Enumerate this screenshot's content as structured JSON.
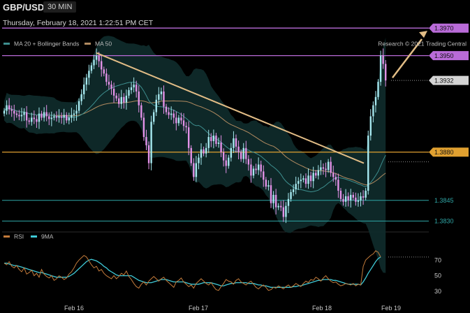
{
  "header": {
    "symbol": "GBP/USD",
    "timeframe": "30 MIN",
    "datetime": "Thursday, February 18, 2021 1:22:51 PM CET",
    "copyright": "Research © 2021 Trading Central"
  },
  "colors": {
    "background": "#000000",
    "up_candle": "#a6e8ef",
    "down_candle": "#e392e8",
    "bollinger_fill": "#0f2a2a",
    "ma20": "#3e8f8f",
    "ma50": "#b08a60",
    "trendline": "#e2bd86",
    "resistance": "#b96bd8",
    "support": "#e0a030",
    "cyan_level": "#2fa6a6",
    "current_price": "#cfcfcf",
    "rsi": "#c27a3a",
    "rsi_ma": "#3fc9d6"
  },
  "chart_data": [
    {
      "type": "candlestick",
      "legend": [
        {
          "label": "MA 20 + Bollinger Bands",
          "color": "#3e8f8f"
        },
        {
          "label": "MA 50",
          "color": "#b08a60"
        }
      ],
      "x_ticks": [
        "Feb 16",
        "Feb 17",
        "Feb 18",
        "Feb 19"
      ],
      "ylim": [
        1.3815,
        1.3985
      ],
      "levels": [
        {
          "value": 1.397,
          "label": "1.3970",
          "kind": "resistance"
        },
        {
          "value": 1.395,
          "label": "1.3950",
          "kind": "resistance"
        },
        {
          "value": 1.3932,
          "label": "1.3932",
          "kind": "current"
        },
        {
          "value": 1.388,
          "label": "1.3880",
          "kind": "support"
        },
        {
          "value": 1.3845,
          "label": "1.3845",
          "kind": "support-minor"
        },
        {
          "value": 1.383,
          "label": "1.3830",
          "kind": "support-minor"
        }
      ],
      "close": [
        1.391,
        1.3914,
        1.3911,
        1.391,
        1.3908,
        1.3907,
        1.3906,
        1.3907,
        1.3909,
        1.3903,
        1.3902,
        1.3905,
        1.3904,
        1.3902,
        1.3908,
        1.3905,
        1.3909,
        1.3906,
        1.3904,
        1.3905,
        1.3906,
        1.3905,
        1.3906,
        1.3905,
        1.3907,
        1.3903,
        1.3905,
        1.3907,
        1.3908,
        1.391,
        1.3917,
        1.3922,
        1.3929,
        1.3934,
        1.3939,
        1.3943,
        1.3947,
        1.395,
        1.3946,
        1.394,
        1.3937,
        1.3931,
        1.3929,
        1.3926,
        1.3921,
        1.3919,
        1.3915,
        1.392,
        1.3916,
        1.3921,
        1.3925,
        1.3927,
        1.3929,
        1.3924,
        1.3914,
        1.3905,
        1.3891,
        1.3885,
        1.3872,
        1.3902,
        1.3909,
        1.3918,
        1.3922,
        1.3924,
        1.3913,
        1.3909,
        1.3907,
        1.3908,
        1.3905,
        1.3901,
        1.3905,
        1.3903,
        1.3899,
        1.3898,
        1.3883,
        1.3872,
        1.3862,
        1.3872,
        1.3876,
        1.3882,
        1.3879,
        1.3883,
        1.3891,
        1.3888,
        1.3892,
        1.3886,
        1.3887,
        1.388,
        1.3874,
        1.387,
        1.3876,
        1.3883,
        1.389,
        1.3884,
        1.388,
        1.3875,
        1.3883,
        1.3875,
        1.3871,
        1.3863,
        1.3868,
        1.3867,
        1.3871,
        1.3866,
        1.386,
        1.3855,
        1.3856,
        1.3843,
        1.3849,
        1.384,
        1.3841,
        1.384,
        1.3833,
        1.3841,
        1.3846,
        1.3851,
        1.3853,
        1.3857,
        1.3859,
        1.386,
        1.3861,
        1.3857,
        1.3863,
        1.3859,
        1.3865,
        1.3863,
        1.3867,
        1.3869,
        1.3868,
        1.3867,
        1.3873,
        1.3865,
        1.3862,
        1.386,
        1.3852,
        1.3846,
        1.3844,
        1.3848,
        1.3845,
        1.3849,
        1.3847,
        1.3844,
        1.3845,
        1.3848,
        1.3847,
        1.3852,
        1.3892,
        1.3906,
        1.3914,
        1.392,
        1.3931,
        1.395,
        1.3944,
        1.3932
      ],
      "rsi": {
        "legend": [
          {
            "label": "RSI",
            "color": "#c27a3a"
          },
          {
            "label": "9MA",
            "color": "#3fc9d6"
          }
        ],
        "ylim": [
          20,
          90
        ],
        "ticks": [
          30,
          50,
          70
        ],
        "rsi": [
          66,
          64,
          68,
          62,
          60,
          63,
          58,
          55,
          60,
          52,
          54,
          57,
          50,
          53,
          48,
          58,
          52,
          49,
          47,
          50,
          44,
          46,
          50,
          48,
          45,
          47,
          52,
          55,
          60,
          66,
          70,
          73,
          76,
          74,
          69,
          64,
          60,
          62,
          56,
          58,
          53,
          50,
          48,
          46,
          50,
          46,
          49,
          53,
          51,
          56,
          49,
          45,
          40,
          36,
          34,
          39,
          42,
          38,
          43,
          46,
          49,
          46,
          43,
          46,
          48,
          44,
          41,
          38,
          35,
          42,
          44,
          47,
          42,
          39,
          36,
          38,
          34,
          40,
          43,
          46,
          43,
          40,
          38,
          41,
          36,
          32,
          31,
          36,
          40,
          45,
          43,
          42,
          39,
          44,
          46,
          42,
          40,
          38,
          41,
          43,
          39,
          35,
          33,
          36,
          38,
          35,
          31,
          32,
          35,
          34,
          37,
          35,
          33,
          36,
          38,
          35,
          37,
          40,
          38,
          36,
          40,
          43,
          41,
          45,
          44,
          48,
          46,
          43,
          47,
          50,
          46,
          43,
          41,
          42,
          39,
          37,
          38,
          40,
          39,
          38,
          40,
          37,
          39,
          38,
          62,
          70,
          73,
          76,
          78,
          82,
          80,
          74
        ],
        "ma": [
          66,
          66,
          65,
          64,
          63,
          63,
          62,
          61,
          60,
          59,
          58,
          57,
          56,
          55,
          54,
          54,
          53,
          52,
          51,
          50,
          49,
          48,
          48,
          48,
          48,
          48,
          49,
          51,
          53,
          56,
          59,
          62,
          65,
          68,
          70,
          71,
          70,
          69,
          67,
          65,
          62,
          60,
          57,
          55,
          53,
          51,
          50,
          50,
          50,
          50,
          50,
          50,
          48,
          46,
          44,
          43,
          42,
          41,
          41,
          41,
          42,
          43,
          44,
          45,
          45,
          45,
          44,
          43,
          42,
          42,
          42,
          42,
          42,
          41,
          40,
          39,
          39,
          39,
          39,
          40,
          41,
          41,
          41,
          41,
          40,
          39,
          38,
          37,
          37,
          38,
          39,
          40,
          40,
          41,
          41,
          41,
          41,
          41,
          40,
          40,
          40,
          39,
          38,
          38,
          37,
          37,
          36,
          35,
          35,
          35,
          35,
          35,
          35,
          35,
          35,
          35,
          36,
          36,
          37,
          37,
          38,
          39,
          40,
          41,
          42,
          43,
          44,
          44,
          45,
          45,
          45,
          45,
          44,
          44,
          43,
          42,
          41,
          40,
          39,
          39,
          39,
          39,
          39,
          38,
          42,
          47,
          53,
          58,
          63,
          68,
          72,
          74
        ]
      }
    }
  ]
}
